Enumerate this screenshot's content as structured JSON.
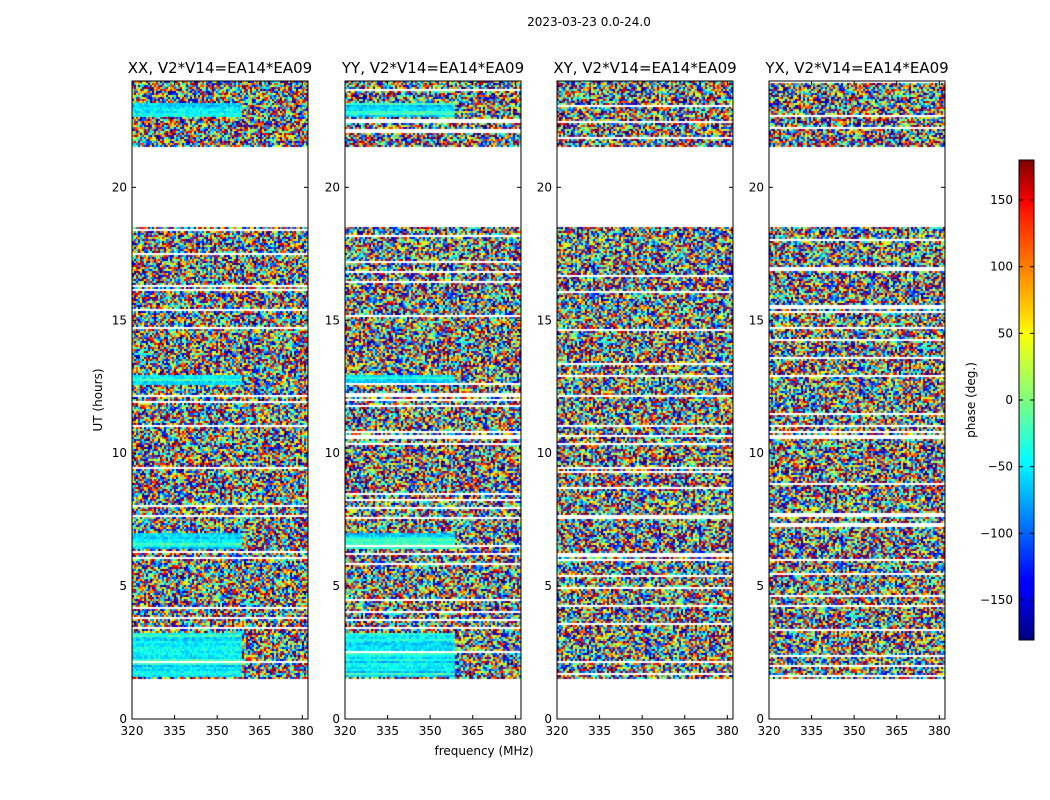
{
  "chart_data": {
    "type": "heatmap",
    "suptitle": "2023-03-23 0.0-24.0",
    "panels": [
      {
        "title": "XX, V2*V14=EA14*EA09",
        "polarization": "XX"
      },
      {
        "title": "YY, V2*V14=EA14*EA09",
        "polarization": "YY"
      },
      {
        "title": "XY, V2*V14=EA14*EA09",
        "polarization": "XY"
      },
      {
        "title": "YX, V2*V14=EA14*EA09",
        "polarization": "YX"
      }
    ],
    "xlabel": "frequency (MHz)",
    "ylabel": "UT (hours)",
    "xlim": [
      320,
      382
    ],
    "ylim": [
      0,
      24
    ],
    "xticks": [
      320,
      335,
      350,
      365,
      380
    ],
    "yticks": [
      0,
      5,
      10,
      15,
      20
    ],
    "data_blocks_ut": [
      [
        1.55,
        21.5
      ],
      [
        21.55,
        24.0
      ]
    ],
    "gap_ut": [
      18.55,
      21.5
    ],
    "blank_ut": [
      0.0,
      1.55
    ],
    "colorbar": {
      "label": "phase (deg.)",
      "range": [
        -180,
        180
      ],
      "ticks": [
        -150,
        -100,
        -50,
        0,
        50,
        100,
        150
      ],
      "tick_labels": [
        "−150",
        "−100",
        "−50",
        "0",
        "50",
        "100",
        "150"
      ],
      "colormap": "jet"
    }
  }
}
